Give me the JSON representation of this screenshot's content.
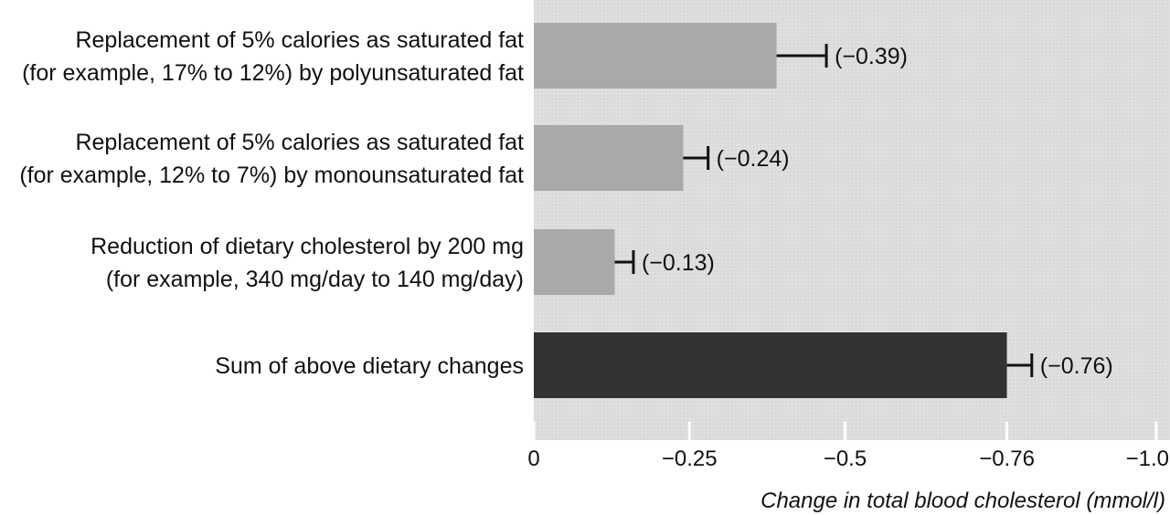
{
  "chart_data": {
    "type": "bar",
    "orientation": "horizontal",
    "categories": [
      [
        "Replacement of 5% calories as saturated fat",
        "(for example, 17% to 12%) by polyunsaturated fat"
      ],
      [
        "Replacement of 5% calories as saturated fat",
        "(for example, 12% to 7%) by monounsaturated fat"
      ],
      [
        "Reduction of dietary cholesterol by 200 mg",
        "(for example, 340 mg/day to 140 mg/day)"
      ],
      [
        "Sum of above dietary changes"
      ]
    ],
    "values": [
      -0.39,
      -0.24,
      -0.13,
      -0.76
    ],
    "error_upper": [
      -0.47,
      -0.28,
      -0.16,
      -0.8
    ],
    "data_labels": [
      "(−0.39)",
      "(−0.24)",
      "(−0.13)",
      "(−0.76)"
    ],
    "bar_colors": [
      "#a9a9a9",
      "#a9a9a9",
      "#a9a9a9",
      "#333333"
    ],
    "xlim": [
      0,
      -1.0
    ],
    "xticks": [
      0,
      -0.25,
      -0.5,
      -0.76,
      -1.0
    ],
    "xtick_labels": [
      "0",
      "−0.25",
      "−0.5",
      "−0.76",
      "−1.0"
    ],
    "xlabel": "Change in total blood cholesterol (mmol/l)",
    "ylabel": "",
    "title": "",
    "grid": false,
    "legend": "none",
    "plot_background": "#dcdedd"
  }
}
